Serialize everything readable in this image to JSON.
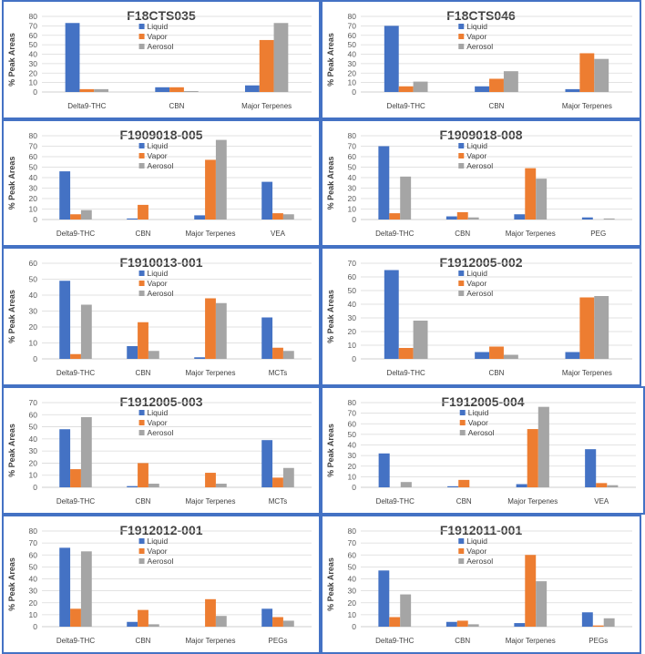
{
  "colors": {
    "liquid": "#4472C4",
    "vapor": "#ED7D31",
    "aerosol": "#A5A5A5",
    "border": "#4472C4"
  },
  "chart_data": [
    {
      "type": "bar",
      "title": "F18CTS035",
      "ylabel": "% Peak Areas",
      "ylim": [
        0,
        80
      ],
      "ticks": [
        0,
        10,
        20,
        30,
        40,
        50,
        60,
        70,
        80
      ],
      "categories": [
        "Delta9-THC",
        "CBN",
        "Major Terpenes"
      ],
      "series": [
        {
          "name": "Liquid",
          "values": [
            73,
            5,
            7
          ]
        },
        {
          "name": "Vapor",
          "values": [
            3,
            5,
            55
          ]
        },
        {
          "name": "Aerosol",
          "values": [
            3,
            1,
            73
          ]
        }
      ]
    },
    {
      "type": "bar",
      "title": "F18CTS046",
      "ylabel": "% Peak Areas",
      "ylim": [
        0,
        80
      ],
      "ticks": [
        0,
        10,
        20,
        30,
        40,
        50,
        60,
        70,
        80
      ],
      "categories": [
        "Delta9-THC",
        "CBN",
        "Major Terpenes"
      ],
      "series": [
        {
          "name": "Liquid",
          "values": [
            70,
            6,
            3
          ]
        },
        {
          "name": "Vapor",
          "values": [
            6,
            14,
            41
          ]
        },
        {
          "name": "Aerosol",
          "values": [
            11,
            22,
            35
          ]
        }
      ]
    },
    {
      "type": "bar",
      "title": "F1909018-005",
      "ylabel": "% Peak Areas",
      "ylim": [
        0,
        80
      ],
      "ticks": [
        0,
        10,
        20,
        30,
        40,
        50,
        60,
        70,
        80
      ],
      "categories": [
        "Delta9-THC",
        "CBN",
        "Major Terpenes",
        "VEA"
      ],
      "series": [
        {
          "name": "Liquid",
          "values": [
            46,
            1,
            4,
            36
          ]
        },
        {
          "name": "Vapor",
          "values": [
            5,
            14,
            57,
            6
          ]
        },
        {
          "name": "Aerosol",
          "values": [
            9,
            0,
            76,
            5
          ]
        }
      ]
    },
    {
      "type": "bar",
      "title": "F1909018-008",
      "ylabel": "% Peak Areas",
      "ylim": [
        0,
        80
      ],
      "ticks": [
        0,
        10,
        20,
        30,
        40,
        50,
        60,
        70,
        80
      ],
      "categories": [
        "Delta9-THC",
        "CBN",
        "Major Terpenes",
        "PEG"
      ],
      "series": [
        {
          "name": "Liquid",
          "values": [
            70,
            3,
            5,
            2
          ]
        },
        {
          "name": "Vapor",
          "values": [
            6,
            7,
            49,
            0
          ]
        },
        {
          "name": "Aerosol",
          "values": [
            41,
            2,
            39,
            1
          ]
        }
      ]
    },
    {
      "type": "bar",
      "title": "F1910013-001",
      "ylabel": "% Peak Areas",
      "ylim": [
        0,
        60
      ],
      "ticks": [
        0,
        10,
        20,
        30,
        40,
        50,
        60
      ],
      "categories": [
        "Delta9-THC",
        "CBN",
        "Major Terpenes",
        "MCTs"
      ],
      "series": [
        {
          "name": "Liquid",
          "values": [
            49,
            8,
            1,
            26
          ]
        },
        {
          "name": "Vapor",
          "values": [
            3,
            23,
            38,
            7
          ]
        },
        {
          "name": "Aerosol",
          "values": [
            34,
            5,
            35,
            5
          ]
        }
      ]
    },
    {
      "type": "bar",
      "title": "F1912005-002",
      "ylabel": "% Peak Areas",
      "ylim": [
        0,
        70
      ],
      "ticks": [
        0,
        10,
        20,
        30,
        40,
        50,
        60,
        70
      ],
      "categories": [
        "Delta9-THC",
        "CBN",
        "Major Terpenes"
      ],
      "series": [
        {
          "name": "Liquid",
          "values": [
            65,
            5,
            5
          ]
        },
        {
          "name": "Vapor",
          "values": [
            8,
            9,
            45
          ]
        },
        {
          "name": "Aerosol",
          "values": [
            28,
            3,
            46
          ]
        }
      ]
    },
    {
      "type": "bar",
      "title": "F1912005-003",
      "ylabel": "% Peak Areas",
      "ylim": [
        0,
        70
      ],
      "ticks": [
        0,
        10,
        20,
        30,
        40,
        50,
        60,
        70
      ],
      "categories": [
        "Delta9-THC",
        "CBN",
        "Major Terpenes",
        "MCTs"
      ],
      "series": [
        {
          "name": "Liquid",
          "values": [
            48,
            1,
            0,
            39
          ]
        },
        {
          "name": "Vapor",
          "values": [
            15,
            20,
            12,
            8
          ]
        },
        {
          "name": "Aerosol",
          "values": [
            58,
            3,
            3,
            16
          ]
        }
      ]
    },
    {
      "type": "bar",
      "title": "F1912005-004",
      "ylabel": "% Peak Areas",
      "ylim": [
        0,
        80
      ],
      "ticks": [
        0,
        10,
        20,
        30,
        40,
        50,
        60,
        70,
        80
      ],
      "categories": [
        "Delta9-THC",
        "CBN",
        "Major Terpenes",
        "VEA"
      ],
      "series": [
        {
          "name": "Liquid",
          "values": [
            32,
            1,
            3,
            36
          ]
        },
        {
          "name": "Vapor",
          "values": [
            0,
            7,
            55,
            4
          ]
        },
        {
          "name": "Aerosol",
          "values": [
            5,
            0,
            76,
            2
          ]
        }
      ]
    },
    {
      "type": "bar",
      "title": "F1912012-001",
      "ylabel": "% Peak Areas",
      "ylim": [
        0,
        80
      ],
      "ticks": [
        0,
        10,
        20,
        30,
        40,
        50,
        60,
        70,
        80
      ],
      "categories": [
        "Delta9-THC",
        "CBN",
        "Major Terpenes",
        "PEGs"
      ],
      "series": [
        {
          "name": "Liquid",
          "values": [
            66,
            4,
            0,
            15
          ]
        },
        {
          "name": "Vapor",
          "values": [
            15,
            14,
            23,
            8
          ]
        },
        {
          "name": "Aerosol",
          "values": [
            63,
            2,
            9,
            5
          ]
        }
      ]
    },
    {
      "type": "bar",
      "title": "F1912011-001",
      "ylabel": "% Peak Areas",
      "ylim": [
        0,
        80
      ],
      "ticks": [
        0,
        10,
        20,
        30,
        40,
        50,
        60,
        70,
        80
      ],
      "categories": [
        "Delta9-THC",
        "CBN",
        "Major Terpenes",
        "PEGs"
      ],
      "series": [
        {
          "name": "Liquid",
          "values": [
            47,
            4,
            3,
            12
          ]
        },
        {
          "name": "Vapor",
          "values": [
            8,
            5,
            60,
            1
          ]
        },
        {
          "name": "Aerosol",
          "values": [
            27,
            2,
            38,
            7
          ]
        }
      ]
    }
  ]
}
